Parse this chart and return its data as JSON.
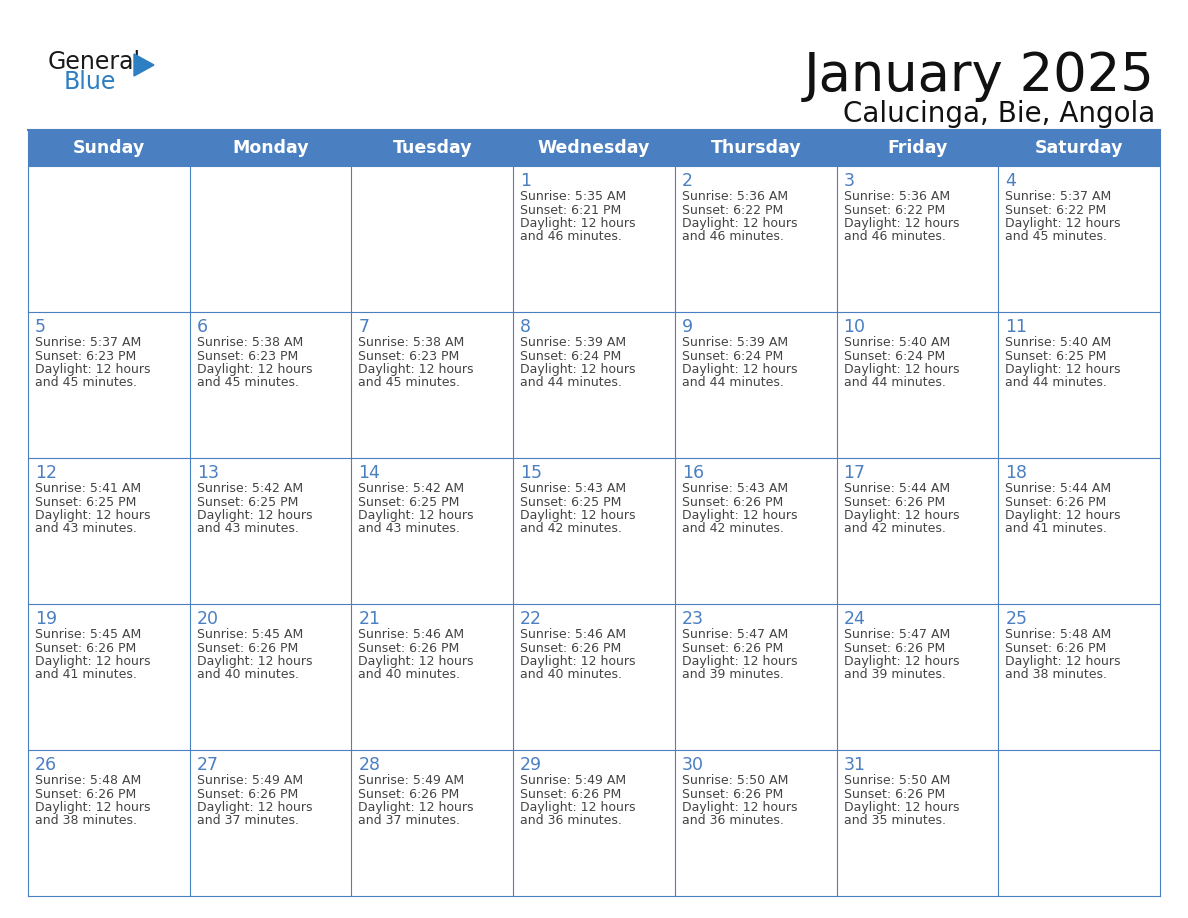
{
  "title": "January 2025",
  "subtitle": "Calucinga, Bie, Angola",
  "days_of_week": [
    "Sunday",
    "Monday",
    "Tuesday",
    "Wednesday",
    "Thursday",
    "Friday",
    "Saturday"
  ],
  "header_bg": "#4a7fc1",
  "header_text": "#FFFFFF",
  "cell_bg": "#FFFFFF",
  "border_color": "#4a7fc1",
  "day_number_color": "#4a7fc1",
  "text_color": "#444444",
  "logo_general_color": "#1a1a1a",
  "logo_blue_color": "#2e7fc1",
  "logo_triangle_color": "#2e7fc1",
  "calendar_data": [
    [
      null,
      null,
      null,
      {
        "day": 1,
        "sunrise": "5:35 AM",
        "sunset": "6:21 PM",
        "daylight": "12 hours\nand 46 minutes."
      },
      {
        "day": 2,
        "sunrise": "5:36 AM",
        "sunset": "6:22 PM",
        "daylight": "12 hours\nand 46 minutes."
      },
      {
        "day": 3,
        "sunrise": "5:36 AM",
        "sunset": "6:22 PM",
        "daylight": "12 hours\nand 46 minutes."
      },
      {
        "day": 4,
        "sunrise": "5:37 AM",
        "sunset": "6:22 PM",
        "daylight": "12 hours\nand 45 minutes."
      }
    ],
    [
      {
        "day": 5,
        "sunrise": "5:37 AM",
        "sunset": "6:23 PM",
        "daylight": "12 hours\nand 45 minutes."
      },
      {
        "day": 6,
        "sunrise": "5:38 AM",
        "sunset": "6:23 PM",
        "daylight": "12 hours\nand 45 minutes."
      },
      {
        "day": 7,
        "sunrise": "5:38 AM",
        "sunset": "6:23 PM",
        "daylight": "12 hours\nand 45 minutes."
      },
      {
        "day": 8,
        "sunrise": "5:39 AM",
        "sunset": "6:24 PM",
        "daylight": "12 hours\nand 44 minutes."
      },
      {
        "day": 9,
        "sunrise": "5:39 AM",
        "sunset": "6:24 PM",
        "daylight": "12 hours\nand 44 minutes."
      },
      {
        "day": 10,
        "sunrise": "5:40 AM",
        "sunset": "6:24 PM",
        "daylight": "12 hours\nand 44 minutes."
      },
      {
        "day": 11,
        "sunrise": "5:40 AM",
        "sunset": "6:25 PM",
        "daylight": "12 hours\nand 44 minutes."
      }
    ],
    [
      {
        "day": 12,
        "sunrise": "5:41 AM",
        "sunset": "6:25 PM",
        "daylight": "12 hours\nand 43 minutes."
      },
      {
        "day": 13,
        "sunrise": "5:42 AM",
        "sunset": "6:25 PM",
        "daylight": "12 hours\nand 43 minutes."
      },
      {
        "day": 14,
        "sunrise": "5:42 AM",
        "sunset": "6:25 PM",
        "daylight": "12 hours\nand 43 minutes."
      },
      {
        "day": 15,
        "sunrise": "5:43 AM",
        "sunset": "6:25 PM",
        "daylight": "12 hours\nand 42 minutes."
      },
      {
        "day": 16,
        "sunrise": "5:43 AM",
        "sunset": "6:26 PM",
        "daylight": "12 hours\nand 42 minutes."
      },
      {
        "day": 17,
        "sunrise": "5:44 AM",
        "sunset": "6:26 PM",
        "daylight": "12 hours\nand 42 minutes."
      },
      {
        "day": 18,
        "sunrise": "5:44 AM",
        "sunset": "6:26 PM",
        "daylight": "12 hours\nand 41 minutes."
      }
    ],
    [
      {
        "day": 19,
        "sunrise": "5:45 AM",
        "sunset": "6:26 PM",
        "daylight": "12 hours\nand 41 minutes."
      },
      {
        "day": 20,
        "sunrise": "5:45 AM",
        "sunset": "6:26 PM",
        "daylight": "12 hours\nand 40 minutes."
      },
      {
        "day": 21,
        "sunrise": "5:46 AM",
        "sunset": "6:26 PM",
        "daylight": "12 hours\nand 40 minutes."
      },
      {
        "day": 22,
        "sunrise": "5:46 AM",
        "sunset": "6:26 PM",
        "daylight": "12 hours\nand 40 minutes."
      },
      {
        "day": 23,
        "sunrise": "5:47 AM",
        "sunset": "6:26 PM",
        "daylight": "12 hours\nand 39 minutes."
      },
      {
        "day": 24,
        "sunrise": "5:47 AM",
        "sunset": "6:26 PM",
        "daylight": "12 hours\nand 39 minutes."
      },
      {
        "day": 25,
        "sunrise": "5:48 AM",
        "sunset": "6:26 PM",
        "daylight": "12 hours\nand 38 minutes."
      }
    ],
    [
      {
        "day": 26,
        "sunrise": "5:48 AM",
        "sunset": "6:26 PM",
        "daylight": "12 hours\nand 38 minutes."
      },
      {
        "day": 27,
        "sunrise": "5:49 AM",
        "sunset": "6:26 PM",
        "daylight": "12 hours\nand 37 minutes."
      },
      {
        "day": 28,
        "sunrise": "5:49 AM",
        "sunset": "6:26 PM",
        "daylight": "12 hours\nand 37 minutes."
      },
      {
        "day": 29,
        "sunrise": "5:49 AM",
        "sunset": "6:26 PM",
        "daylight": "12 hours\nand 36 minutes."
      },
      {
        "day": 30,
        "sunrise": "5:50 AM",
        "sunset": "6:26 PM",
        "daylight": "12 hours\nand 36 minutes."
      },
      {
        "day": 31,
        "sunrise": "5:50 AM",
        "sunset": "6:26 PM",
        "daylight": "12 hours\nand 35 minutes."
      },
      null
    ]
  ]
}
